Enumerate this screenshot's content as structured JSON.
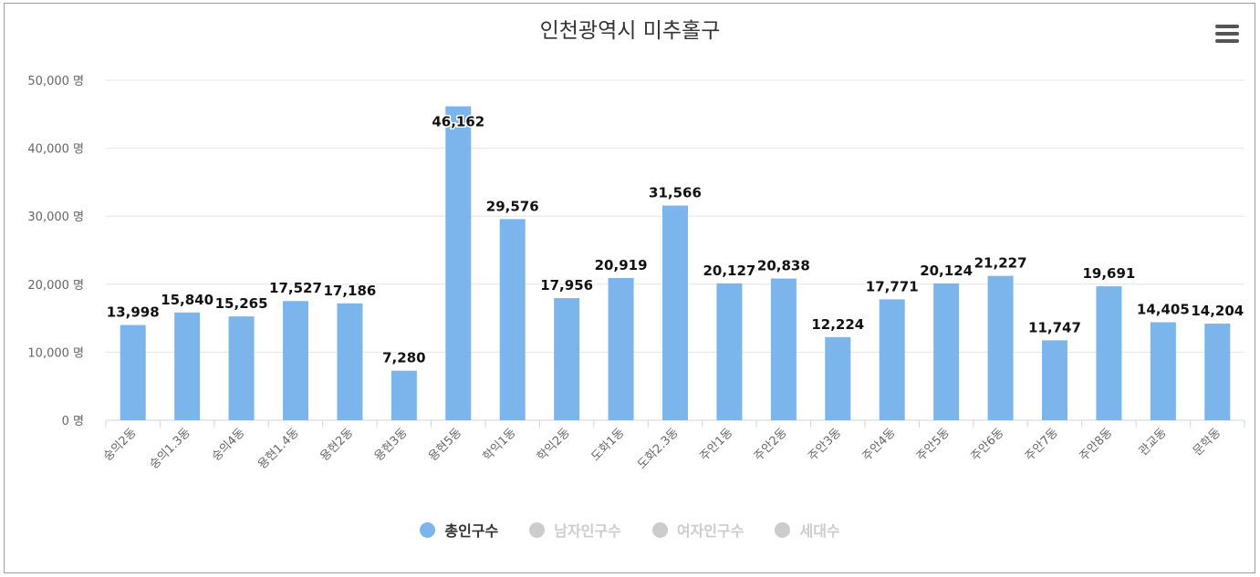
{
  "title": "인천광역시 미추홀구",
  "legend": [
    {
      "label": "총인구수",
      "color": "#7cb5ec",
      "active": true
    },
    {
      "label": "남자인구수",
      "color": "#cccccc",
      "active": false
    },
    {
      "label": "여자인구수",
      "color": "#cccccc",
      "active": false
    },
    {
      "label": "세대수",
      "color": "#cccccc",
      "active": false
    }
  ],
  "chart_data": {
    "type": "bar",
    "title": "인천광역시 미추홀구",
    "categories": [
      "숭의2동",
      "숭의1.3동",
      "숭의4동",
      "용현1.4동",
      "용현2동",
      "용현3동",
      "용현5동",
      "학익1동",
      "학익2동",
      "도화1동",
      "도화2.3동",
      "주안1동",
      "주안2동",
      "주안3동",
      "주안4동",
      "주안5동",
      "주안6동",
      "주안7동",
      "주안8동",
      "관교동",
      "문학동"
    ],
    "series": [
      {
        "name": "총인구수",
        "values": [
          13998,
          15840,
          15265,
          17527,
          17186,
          7280,
          46162,
          29576,
          17956,
          20919,
          31566,
          20127,
          20838,
          12224,
          17771,
          20124,
          21227,
          11747,
          19691,
          14405,
          14204
        ]
      }
    ],
    "data_labels": [
      "13,998",
      "15,840",
      "15,265",
      "17,527",
      "17,186",
      "7,280",
      "46,162",
      "29,576",
      "17,956",
      "20,919",
      "31,566",
      "20,127",
      "20,838",
      "12,224",
      "17,771",
      "20,124",
      "21,227",
      "11,747",
      "19,691",
      "14,405",
      "14,204"
    ],
    "y_ticks": [
      0,
      10000,
      20000,
      30000,
      40000,
      50000
    ],
    "y_tick_labels": [
      "0 명",
      "10,000 명",
      "20,000 명",
      "30,000 명",
      "40,000 명",
      "50,000 명"
    ],
    "ylim": [
      0,
      50000
    ],
    "bar_color": "#7cb5ec",
    "grid": true,
    "legend_position": "bottom-center"
  }
}
